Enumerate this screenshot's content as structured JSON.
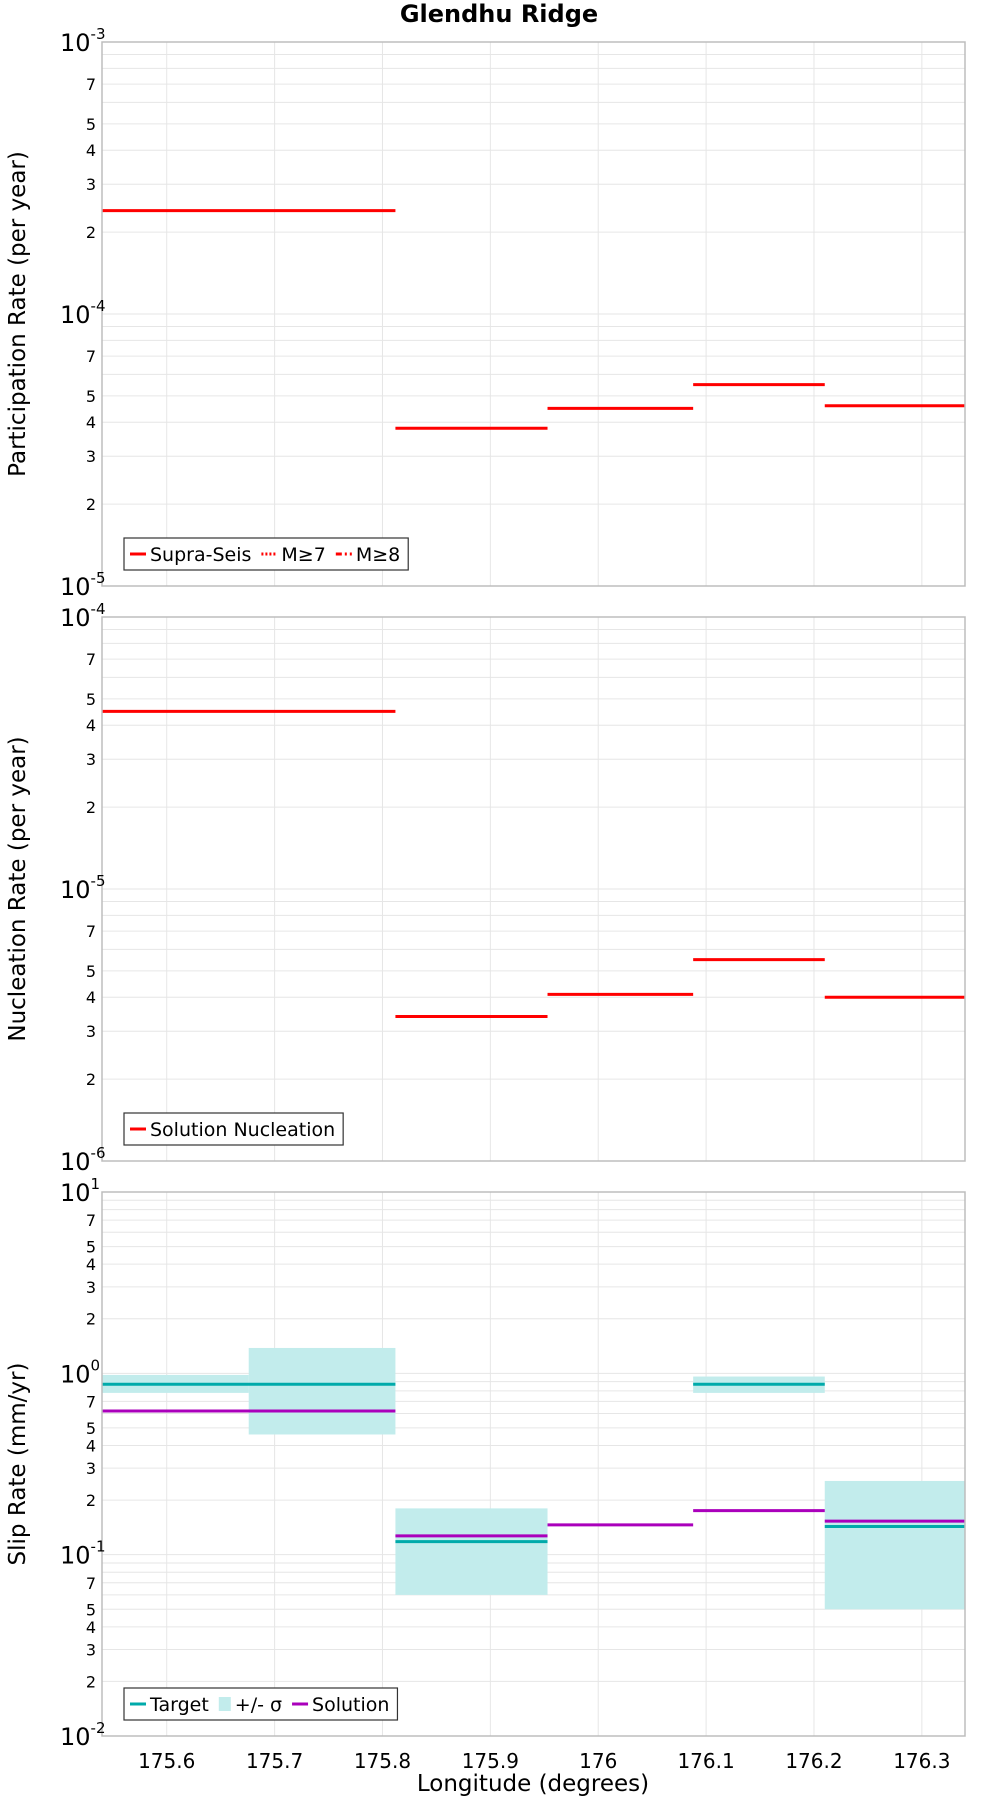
{
  "title": "Glendhu Ridge",
  "xlabel": "Longitude (degrees)",
  "colors": {
    "red": "#ff0000",
    "teal": "#00aaaa",
    "teal_band": "#c2ecec",
    "purple": "#aa00bb",
    "grid": "#e6e6e6",
    "frame": "#bdbdbd"
  },
  "chart_data": [
    {
      "type": "line",
      "ylabel": "Participation Rate (per year)",
      "yscale": "log",
      "ylim": [
        1e-05,
        0.001
      ],
      "xlim": [
        175.54,
        176.34
      ],
      "xticks": [
        175.6,
        175.7,
        175.8,
        175.9,
        176,
        176.1,
        176.2,
        176.3
      ],
      "legend_position": "bottom-left",
      "legend": [
        {
          "label": "Supra-Seis",
          "style": "solid",
          "color": "#ff0000"
        },
        {
          "label": "M≥7",
          "style": "dotted",
          "color": "#ff0000"
        },
        {
          "label": "M≥8",
          "style": "dashdot",
          "color": "#ff0000"
        }
      ],
      "series": [
        {
          "name": "Supra-Seis",
          "kind": "steps",
          "color": "#ff0000",
          "segments": [
            {
              "x": [
                175.54,
                175.812
              ],
              "y": 0.00024
            },
            {
              "x": [
                175.812,
                175.953
              ],
              "y": 3.8e-05
            },
            {
              "x": [
                175.953,
                176.088
              ],
              "y": 4.5e-05
            },
            {
              "x": [
                176.088,
                176.21
              ],
              "y": 5.5e-05
            },
            {
              "x": [
                176.21,
                176.34
              ],
              "y": 4.6e-05
            }
          ]
        }
      ]
    },
    {
      "type": "line",
      "ylabel": "Nucleation Rate (per year)",
      "yscale": "log",
      "ylim": [
        1e-06,
        0.0001
      ],
      "xlim": [
        175.54,
        176.34
      ],
      "xticks": [
        175.6,
        175.7,
        175.8,
        175.9,
        176,
        176.1,
        176.2,
        176.3
      ],
      "legend_position": "bottom-left",
      "legend": [
        {
          "label": "Solution Nucleation",
          "style": "solid",
          "color": "#ff0000"
        }
      ],
      "series": [
        {
          "name": "Solution Nucleation",
          "kind": "steps",
          "color": "#ff0000",
          "segments": [
            {
              "x": [
                175.54,
                175.812
              ],
              "y": 4.5e-05
            },
            {
              "x": [
                175.812,
                175.953
              ],
              "y": 3.4e-06
            },
            {
              "x": [
                175.953,
                176.088
              ],
              "y": 4.1e-06
            },
            {
              "x": [
                176.088,
                176.21
              ],
              "y": 5.5e-06
            },
            {
              "x": [
                176.21,
                176.34
              ],
              "y": 4e-06
            }
          ]
        }
      ]
    },
    {
      "type": "line",
      "ylabel": "Slip Rate (mm/yr)",
      "yscale": "log",
      "ylim": [
        0.01,
        10
      ],
      "xlim": [
        175.54,
        176.34
      ],
      "xticks": [
        175.6,
        175.7,
        175.8,
        175.9,
        176,
        176.1,
        176.2,
        176.3
      ],
      "legend_position": "bottom-left",
      "legend": [
        {
          "label": "Target",
          "style": "solid",
          "color": "#00aaaa"
        },
        {
          "label": "+/- σ",
          "style": "band",
          "color": "#c2ecec"
        },
        {
          "label": "Solution",
          "style": "solid",
          "color": "#aa00bb"
        }
      ],
      "series": [
        {
          "name": "+/- σ",
          "kind": "bands",
          "color": "#c2ecec",
          "segments": [
            {
              "x": [
                175.54,
                175.676
              ],
              "low": 0.78,
              "high": 0.98
            },
            {
              "x": [
                175.676,
                175.812
              ],
              "low": 0.46,
              "high": 1.38
            },
            {
              "x": [
                175.812,
                175.953
              ],
              "low": 0.06,
              "high": 0.18
            },
            {
              "x": [
                176.088,
                176.21
              ],
              "low": 0.78,
              "high": 0.96
            },
            {
              "x": [
                176.21,
                176.34
              ],
              "low": 0.05,
              "high": 0.255
            }
          ]
        },
        {
          "name": "Target",
          "kind": "steps",
          "color": "#00aaaa",
          "segments": [
            {
              "x": [
                175.54,
                175.812
              ],
              "y": 0.87
            },
            {
              "x": [
                175.812,
                175.953
              ],
              "y": 0.118
            },
            {
              "x": [
                176.088,
                176.21
              ],
              "y": 0.87
            },
            {
              "x": [
                176.21,
                176.34
              ],
              "y": 0.143
            }
          ]
        },
        {
          "name": "Solution",
          "kind": "steps",
          "color": "#aa00bb",
          "segments": [
            {
              "x": [
                175.54,
                175.812
              ],
              "y": 0.62
            },
            {
              "x": [
                175.812,
                175.953
              ],
              "y": 0.127
            },
            {
              "x": [
                175.953,
                176.088
              ],
              "y": 0.146
            },
            {
              "x": [
                176.088,
                176.21
              ],
              "y": 0.175
            },
            {
              "x": [
                176.21,
                176.34
              ],
              "y": 0.153
            }
          ]
        }
      ]
    }
  ]
}
